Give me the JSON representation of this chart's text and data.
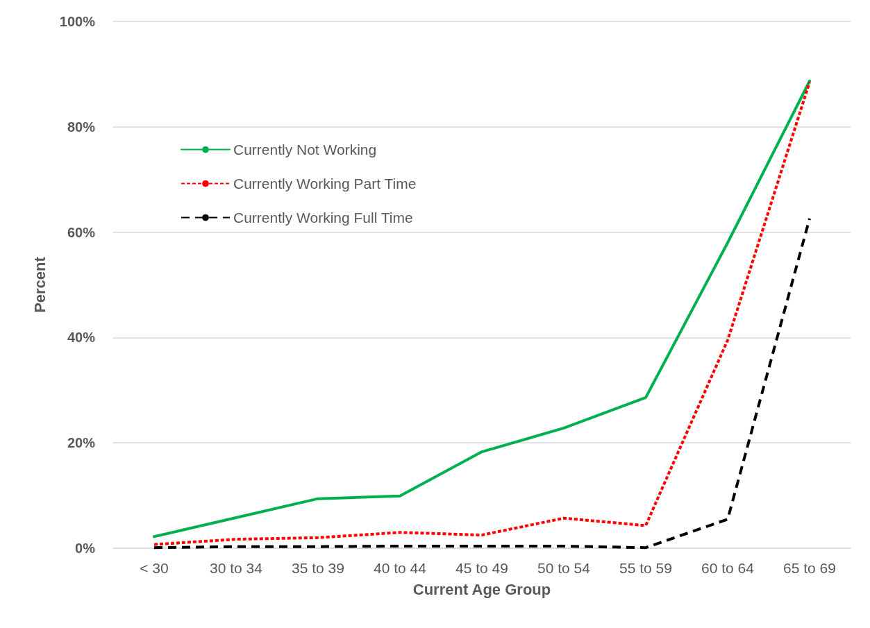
{
  "chart_data": {
    "type": "line",
    "xlabel": "Current Age Group",
    "ylabel": "Percent",
    "categories": [
      "< 30",
      "30 to 34",
      "35 to 39",
      "40 to 44",
      "45 to 49",
      "50 to 54",
      "55 to 59",
      "60 to 64",
      "65 to 69"
    ],
    "series": [
      {
        "name": "Currently Not Working",
        "color": "#00b050",
        "line_style": "solid",
        "values": [
          2.2,
          5.8,
          9.4,
          9.9,
          18.3,
          22.8,
          28.6,
          58,
          88.7
        ]
      },
      {
        "name": "Currently Working Part Time",
        "color": "#ff0000",
        "line_style": "dotted",
        "values": [
          0.7,
          1.7,
          2.0,
          3.0,
          2.5,
          5.7,
          4.3,
          39.5,
          88.5
        ]
      },
      {
        "name": "Currently Working Full Time",
        "color": "#000000",
        "line_style": "dashed",
        "values": [
          0.1,
          0.3,
          0.3,
          0.4,
          0.4,
          0.4,
          0.1,
          5.5,
          62.6
        ]
      }
    ],
    "ylim": [
      0,
      100
    ],
    "yticks": [
      {
        "value": 0,
        "label": "0%"
      },
      {
        "value": 20,
        "label": "20%"
      },
      {
        "value": 40,
        "label": "40%"
      },
      {
        "value": 60,
        "label": "60%"
      },
      {
        "value": 80,
        "label": "80%"
      },
      {
        "value": 100,
        "label": "100%"
      }
    ],
    "grid": "y",
    "legend": "top left",
    "marker": "none"
  }
}
